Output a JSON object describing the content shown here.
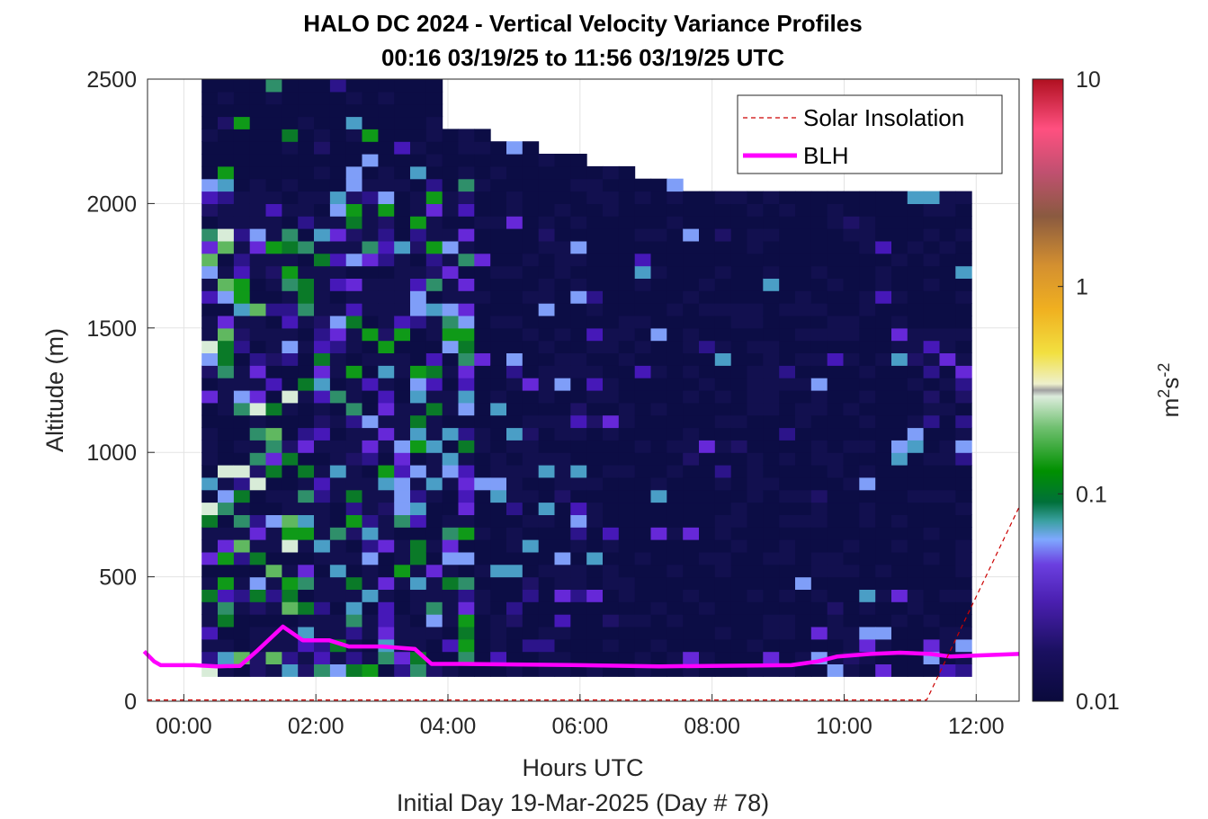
{
  "chart_data": {
    "type": "heatmap",
    "title": "HALO DC 2024 - Vertical Velocity Variance Profiles",
    "subtitle": "00:16 03/19/25 to 11:56 03/19/25  UTC",
    "xlabel": "Hours UTC",
    "xlabel2": "Initial Day 19-Mar-2025 (Day # 78)",
    "ylabel": "Altitude (m)",
    "colorbar_label": "m²s⁻²",
    "colorbar_label_base": "m",
    "colorbar_label_exp1": "2",
    "colorbar_label_mid": "s",
    "colorbar_label_exp2": "-2",
    "colorbar_scale": "log",
    "colorbar_range": [
      0.01,
      10
    ],
    "colorbar_ticks": [
      "10",
      "1",
      "0.1",
      "0.01"
    ],
    "xlim": [
      -0.55,
      12.65
    ],
    "ylim": [
      0,
      2500
    ],
    "x_ticks": [
      "00:00",
      "02:00",
      "04:00",
      "06:00",
      "08:00",
      "10:00",
      "12:00"
    ],
    "x_tick_values": [
      0,
      2,
      4,
      6,
      8,
      10,
      12
    ],
    "y_ticks": [
      "0",
      "500",
      "1000",
      "1500",
      "2000",
      "2500"
    ],
    "y_tick_values": [
      0,
      500,
      1000,
      1500,
      2000,
      2500
    ],
    "grid": true,
    "legend_position": "top-right",
    "legend": [
      "Solar Insolation",
      "BLH"
    ],
    "series": [
      {
        "name": "BLH",
        "color": "#ff00ff",
        "x": [
          -0.6,
          -0.45,
          -0.35,
          0.15,
          0.5,
          0.85,
          1.1,
          1.5,
          1.8,
          2.2,
          2.5,
          3.0,
          3.5,
          3.75,
          4.2,
          6.0,
          7.2,
          9.2,
          9.6,
          9.9,
          10.4,
          10.85,
          11.3,
          11.6,
          12.65
        ],
        "y": [
          200,
          160,
          145,
          145,
          140,
          142,
          200,
          300,
          245,
          245,
          220,
          220,
          210,
          150,
          150,
          145,
          140,
          145,
          160,
          180,
          190,
          195,
          190,
          180,
          190
        ]
      },
      {
        "name": "Solar Insolation",
        "color": "#cc0000",
        "style": "dashed",
        "x": [
          -0.55,
          11.25,
          12.65
        ],
        "y": [
          5,
          5,
          780
        ]
      }
    ],
    "data_coverage": {
      "time_start": 0.27,
      "time_end": 11.93,
      "altitude_min": 100,
      "altitude_max_early": 2500,
      "altitude_max_late": 2000
    }
  },
  "colors": {
    "background_cells": "#0c0d45",
    "blh": "#ff00ff",
    "solar": "#cc0000"
  }
}
